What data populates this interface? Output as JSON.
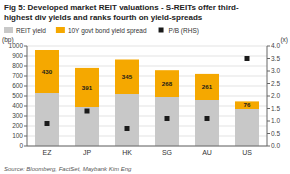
{
  "chart_data": {
    "type": "bar",
    "stacked": true,
    "title": "Fig 5: Developed market REIT valuations - S-REITs offer third-",
    "subtitle": "highest div yields and ranks fourth on yield-spreads",
    "ylabel": "(bp)",
    "y2label": "(x)",
    "categories": [
      "EZ",
      "JP",
      "HK",
      "SG",
      "AU",
      "US"
    ],
    "series": [
      {
        "name": "REIT yield",
        "color": "#c8c8c8",
        "values": [
          530,
          390,
          520,
          490,
          460,
          370
        ]
      },
      {
        "name": "10Y govt bond yield spread",
        "color": "#f5a800",
        "values": [
          430,
          391,
          345,
          268,
          261,
          76
        ],
        "data_labels": true
      },
      {
        "name": "P/B (RHS)",
        "type": "scatter",
        "marker": "square",
        "axis": "y2",
        "color": "#1a1a1a",
        "values": [
          0.9,
          1.4,
          0.7,
          1.1,
          1.1,
          3.5
        ]
      }
    ],
    "ylim": [
      0,
      1000
    ],
    "yticks": [
      0,
      100,
      200,
      300,
      400,
      500,
      600,
      700,
      800,
      900,
      1000
    ],
    "y2lim": [
      0,
      4.0
    ],
    "y2ticks": [
      {
        "value": 0.0,
        "label": "0.0"
      },
      0.5,
      {
        "value": 1.0,
        "label": "1.0"
      },
      1.5,
      {
        "value": 2.0,
        "label": "2.0"
      },
      2.5,
      {
        "value": 3.0,
        "label": "3.0"
      },
      3.5,
      {
        "value": 4.0,
        "label": "4.0"
      }
    ],
    "grid": true,
    "legend": "top",
    "annotations": [
      "Source: Bloomberg, FactSet, Maybank Kim Eng"
    ]
  }
}
